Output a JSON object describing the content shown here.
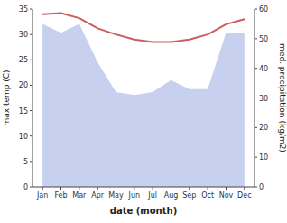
{
  "chart_data": {
    "type": "line",
    "xlabel": "date (month)",
    "ylabel": "max temp (C)",
    "y2label": "med. precipitation (kg/m2)",
    "categories": [
      "Jan",
      "Feb",
      "Mar",
      "Apr",
      "May",
      "Jun",
      "Jul",
      "Aug",
      "Sep",
      "Oct",
      "Nov",
      "Dec"
    ],
    "ylim": [
      0,
      35
    ],
    "yticks": [
      0,
      5,
      10,
      15,
      20,
      25,
      30,
      35
    ],
    "y2lim": [
      0,
      60
    ],
    "y2ticks": [
      0,
      10,
      20,
      30,
      40,
      50,
      60
    ],
    "grid": false,
    "series": [
      {
        "type": "area",
        "axis": "y2",
        "color": "#c8d0f0",
        "values": [
          55.0,
          52.0,
          55.0,
          42.0,
          32.0,
          31.0,
          32.0,
          36.0,
          33.0,
          33.0,
          52.0,
          52.0
        ]
      },
      {
        "type": "line",
        "color": "#cd5c5c",
        "values": [
          34.0,
          34.2,
          33.2,
          31.2,
          30.0,
          29.0,
          28.5,
          28.5,
          29.0,
          30.0,
          32.0,
          33.0
        ]
      }
    ]
  }
}
